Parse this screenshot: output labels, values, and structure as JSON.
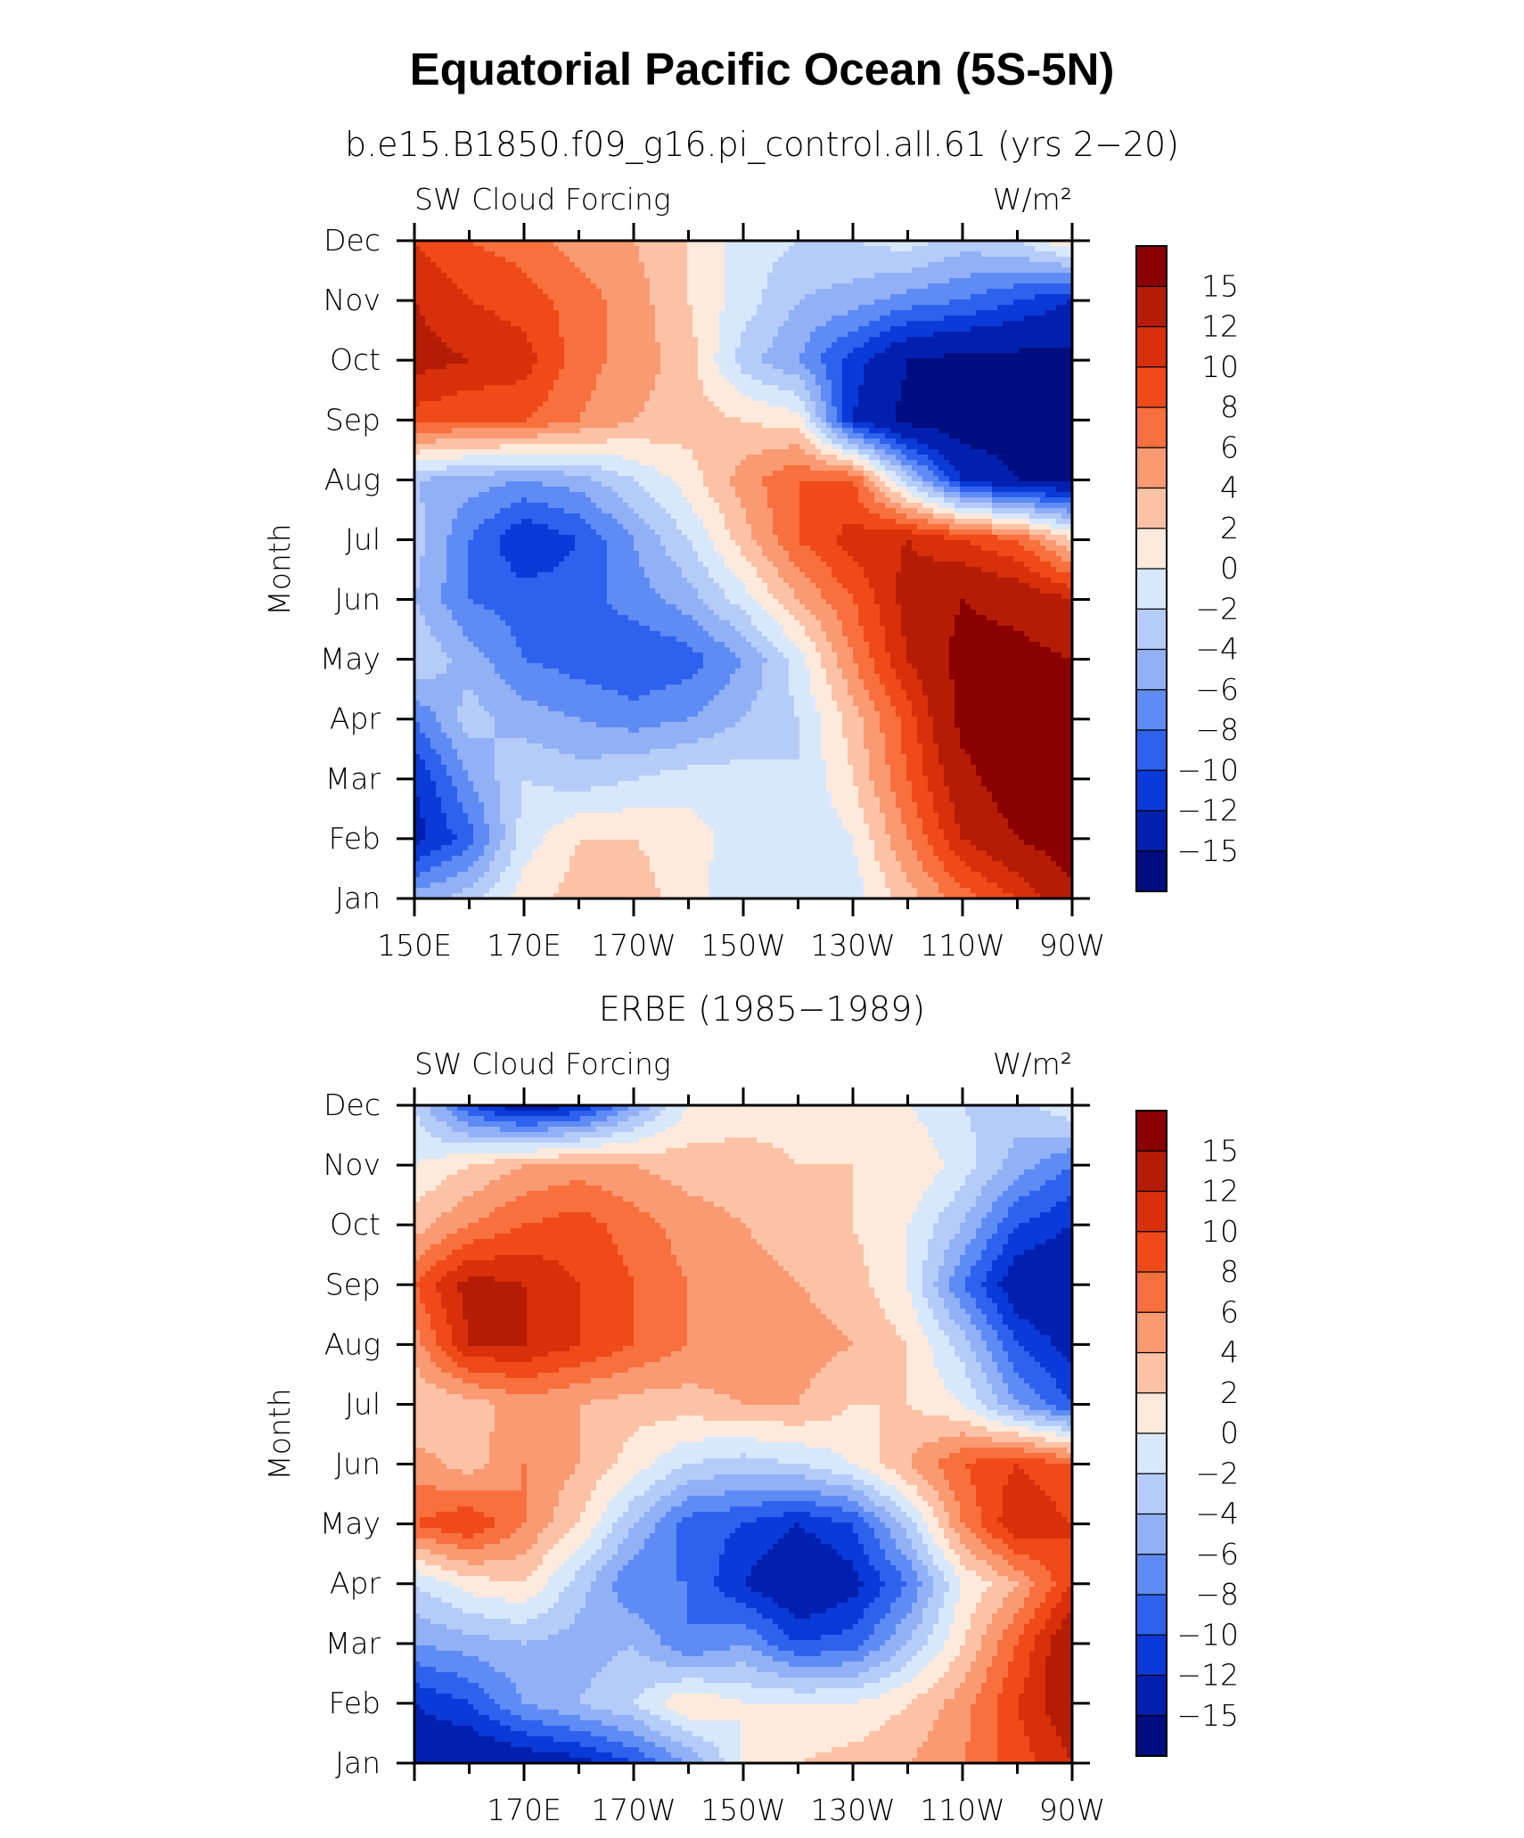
{
  "figure": {
    "title": "Equatorial Pacific Ocean (5S-5N)"
  },
  "colorbar": {
    "labels": [
      "15",
      "12",
      "10",
      "8",
      "6",
      "4",
      "2",
      "0",
      "−2",
      "−4",
      "−6",
      "−8",
      "−10",
      "−12",
      "−15"
    ],
    "colors": [
      "#8b0000",
      "#b51c06",
      "#d8300a",
      "#f04a18",
      "#f8703e",
      "#fa9a72",
      "#fcc2a6",
      "#feeadc",
      "#d8e8fc",
      "#b6ccf8",
      "#92b0f6",
      "#5e8cf4",
      "#2e62ee",
      "#0a3ad8",
      "#0220b0",
      "#000e80"
    ]
  },
  "chart_data": [
    {
      "type": "heatmap",
      "title": "b.e15.B1850.f09_g16.pi_control.all.61 (yrs 2−20)",
      "left_label": "SW Cloud Forcing",
      "right_label": "W/m²",
      "ylabel": "Month",
      "x_ticks": [
        "150E",
        "170E",
        "170W",
        "150W",
        "130W",
        "110W",
        "90W"
      ],
      "y_ticks": [
        "Jan",
        "Feb",
        "Mar",
        "Apr",
        "May",
        "Jun",
        "Jul",
        "Aug",
        "Sep",
        "Oct",
        "Nov",
        "Dec"
      ],
      "x_range": [
        "150E",
        "90W"
      ],
      "units": "W/m²",
      "columns": [
        "150E",
        "160E",
        "170E",
        "180",
        "170W",
        "160W",
        "150W",
        "140W",
        "130W",
        "120W",
        "110W",
        "100W",
        "90W"
      ],
      "rows": [
        "Jan",
        "Feb",
        "Mar",
        "Apr",
        "May",
        "Jun",
        "Jul",
        "Aug",
        "Sep",
        "Oct",
        "Nov",
        "Dec"
      ],
      "values": [
        [
          -5,
          -3,
          1,
          3,
          3,
          1,
          -2,
          -2,
          -1,
          3,
          7,
          10,
          14
        ],
        [
          -13,
          -9,
          -1,
          2,
          2,
          1,
          -1,
          -2,
          0,
          6,
          12,
          15,
          17
        ],
        [
          -12,
          -6,
          -2,
          -3,
          -2,
          -1,
          -1,
          -2,
          2,
          8,
          14,
          17,
          18
        ],
        [
          -8,
          -3,
          -5,
          -6,
          -7,
          -6,
          -4,
          -2,
          3,
          9,
          16,
          17,
          17
        ],
        [
          -2,
          -5,
          -8,
          -9,
          -10,
          -9,
          -6,
          -1,
          6,
          12,
          16,
          16,
          15
        ],
        [
          -4,
          -8,
          -9,
          -9,
          -7,
          -5,
          -1,
          4,
          8,
          13,
          15,
          14,
          12
        ],
        [
          -3,
          -8,
          -12,
          -10,
          -6,
          -2,
          3,
          8,
          11,
          12,
          10,
          8,
          2
        ],
        [
          -4,
          -5,
          -6,
          -5,
          -2,
          1,
          5,
          8,
          8,
          -3,
          -12,
          -15,
          -15
        ],
        [
          9,
          8,
          8,
          6,
          4,
          3,
          2,
          1,
          -12,
          -16,
          -17,
          -17,
          -17
        ],
        [
          13,
          12,
          11,
          7,
          5,
          3,
          -3,
          -6,
          -11,
          -15,
          -16,
          -16,
          -16
        ],
        [
          12,
          10,
          9,
          7,
          5,
          2,
          -1,
          -4,
          -5,
          -7,
          -8,
          -10,
          -12
        ],
        [
          10,
          8,
          7,
          5,
          4,
          2,
          -1,
          -2,
          -2,
          -1,
          -3,
          -2,
          2
        ]
      ]
    },
    {
      "type": "heatmap",
      "title": "ERBE (1985−1989)",
      "left_label": "SW Cloud Forcing",
      "right_label": "W/m²",
      "ylabel": "Month",
      "x_ticks": [
        "170E",
        "170W",
        "150W",
        "130W",
        "110W",
        "90W"
      ],
      "y_ticks": [
        "Jan",
        "Feb",
        "Mar",
        "Apr",
        "May",
        "Jun",
        "Jul",
        "Aug",
        "Sep",
        "Oct",
        "Nov",
        "Dec"
      ],
      "units": "W/m²",
      "columns": [
        "150E",
        "160E",
        "170E",
        "180",
        "170W",
        "160W",
        "150W",
        "140W",
        "130W",
        "120W",
        "110W",
        "100W",
        "90W"
      ],
      "rows": [
        "Jan",
        "Feb",
        "Mar",
        "Apr",
        "May",
        "Jun",
        "Jul",
        "Aug",
        "Sep",
        "Oct",
        "Nov",
        "Dec"
      ],
      "values": [
        [
          -14,
          -15,
          -14,
          -13,
          -10,
          -6,
          0,
          2,
          3,
          4,
          6,
          9,
          12
        ],
        [
          -12,
          -10,
          -6,
          -4,
          -2,
          2,
          0,
          0,
          0,
          2,
          5,
          10,
          14
        ],
        [
          -6,
          -5,
          -4,
          -5,
          -4,
          -8,
          -6,
          -10,
          -9,
          -4,
          2,
          8,
          15
        ],
        [
          -2,
          1,
          2,
          -3,
          -8,
          -8,
          -12,
          -15,
          -13,
          -8,
          0,
          4,
          10
        ],
        [
          8,
          10,
          6,
          2,
          -4,
          -9,
          -10,
          -12,
          -10,
          -3,
          6,
          12,
          10
        ],
        [
          5,
          3,
          6,
          4,
          1,
          -2,
          -3,
          -2,
          0,
          4,
          8,
          10,
          8
        ],
        [
          2,
          3,
          5,
          4,
          3,
          3,
          4,
          4,
          2,
          2,
          0,
          -6,
          -10
        ],
        [
          5,
          12,
          12,
          10,
          8,
          6,
          6,
          5,
          4,
          2,
          -3,
          -10,
          -13
        ],
        [
          8,
          13,
          12,
          10,
          8,
          6,
          5,
          4,
          3,
          0,
          -8,
          -14,
          -15
        ],
        [
          3,
          6,
          8,
          9,
          7,
          5,
          4,
          3,
          2,
          0,
          -4,
          -10,
          -12
        ],
        [
          0,
          2,
          4,
          5,
          4,
          3,
          3,
          2,
          2,
          2,
          -1,
          -5,
          -8
        ],
        [
          -2,
          -10,
          -14,
          -12,
          -6,
          0,
          1,
          1,
          1,
          0,
          -2,
          -3,
          0
        ]
      ]
    }
  ]
}
